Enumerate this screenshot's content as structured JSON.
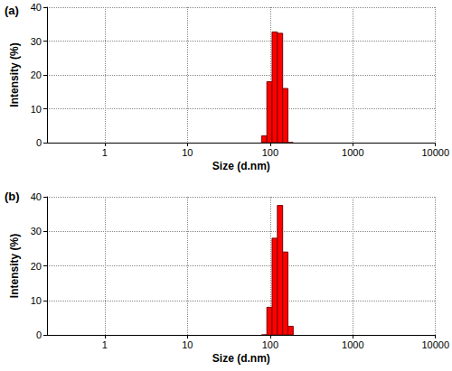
{
  "chart_data": [
    {
      "type": "histogram",
      "title": "(a)",
      "x_label": "Size (d.nm)",
      "y_label": "Intensity (%)",
      "bins": [
        78.8,
        91.3,
        105.7,
        122.4,
        141.8,
        164.2,
        190.1
      ],
      "values": [
        2,
        18,
        32.7,
        32.3,
        16,
        0
      ],
      "color": "#ff0000",
      "log": "x",
      "xlim": [
        0.2,
        10000
      ],
      "xticks": [
        1,
        10,
        100,
        1000,
        10000
      ],
      "ylim": [
        0,
        40
      ],
      "yticks": [
        0,
        10,
        20,
        30,
        40
      ],
      "grid": true
    },
    {
      "type": "histogram",
      "title": "(b)",
      "x_label": "Size (d.nm)",
      "y_label": "Intensity (%)",
      "bins": [
        78.8,
        91.3,
        105.7,
        122.4,
        141.8,
        164.2,
        190.1
      ],
      "values": [
        0,
        8,
        28,
        37.5,
        24,
        2.5
      ],
      "color": "#ff0000",
      "log": "x",
      "xlim": [
        0.2,
        10000
      ],
      "xticks": [
        1,
        10,
        100,
        1000,
        10000
      ],
      "ylim": [
        0,
        40
      ],
      "yticks": [
        0,
        10,
        20,
        30,
        40
      ],
      "grid": true
    }
  ]
}
